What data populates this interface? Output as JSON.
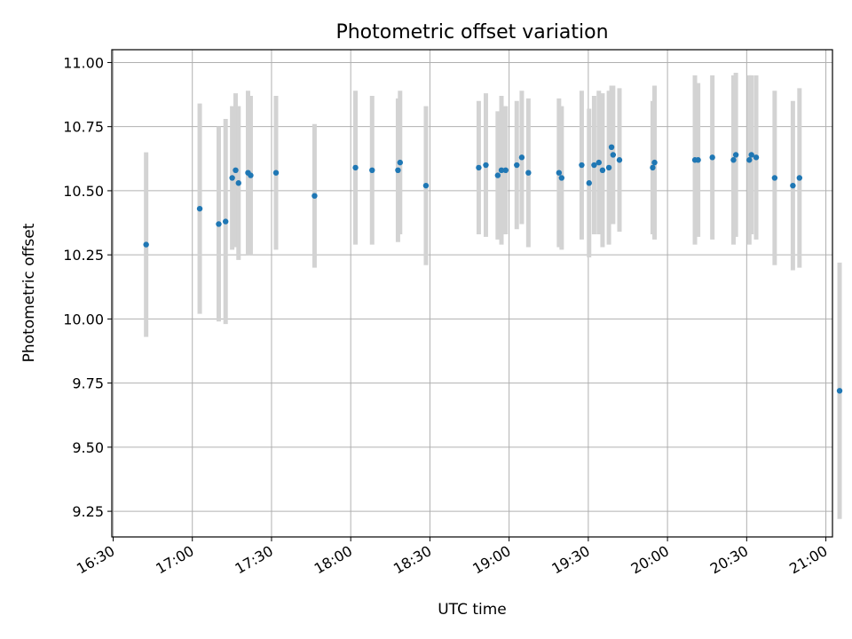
{
  "chart_data": {
    "type": "scatter",
    "title": "Photometric offset variation",
    "xlabel": "UTC time",
    "ylabel": "Photometric offset",
    "grid": true,
    "x_tick_labels": [
      "16:30",
      "17:00",
      "17:30",
      "18:00",
      "18:30",
      "19:00",
      "19:30",
      "20:00",
      "20:30",
      "21:00"
    ],
    "x_tick_minutes": [
      990,
      1020,
      1050,
      1080,
      1110,
      1140,
      1170,
      1200,
      1230,
      1260
    ],
    "xlim_minutes": [
      989.5,
      1262.5
    ],
    "y_tick_labels": [
      "9.25",
      "9.50",
      "9.75",
      "10.00",
      "10.25",
      "10.50",
      "10.75",
      "11.00"
    ],
    "y_tick_values": [
      9.25,
      9.5,
      9.75,
      10.0,
      10.25,
      10.5,
      10.75,
      11.0
    ],
    "ylim": [
      9.15,
      11.05
    ],
    "colors": {
      "point": "#1f77b4",
      "errorbar": "#d3d3d3",
      "grid": "#b0b0b0"
    },
    "series": [
      {
        "x_minutes": [
          1002.5,
          1022.8,
          1030.0,
          1032.6,
          1035.1,
          1036.4,
          1037.5,
          1041.1,
          1042.1,
          1051.7,
          1066.3,
          1081.8,
          1088.1,
          1097.9,
          1098.7,
          1108.5,
          1128.5,
          1131.2,
          1135.7,
          1137.1,
          1138.7,
          1142.9,
          1144.8,
          1147.3,
          1158.9,
          1159.9,
          1167.5,
          1170.3,
          1172.2,
          1174.0,
          1175.4,
          1177.8,
          1178.8,
          1179.4,
          1181.8,
          1194.4,
          1195.1,
          1210.4,
          1211.6,
          1217.0,
          1225.0,
          1225.9,
          1231.0,
          1231.8,
          1233.6,
          1240.6,
          1247.5,
          1250.0,
          1265.2
        ],
        "y": [
          10.29,
          10.43,
          10.37,
          10.38,
          10.55,
          10.58,
          10.53,
          10.57,
          10.56,
          10.57,
          10.48,
          10.59,
          10.58,
          10.58,
          10.61,
          10.52,
          10.59,
          10.6,
          10.56,
          10.58,
          10.58,
          10.6,
          10.63,
          10.57,
          10.57,
          10.55,
          10.6,
          10.53,
          10.6,
          10.61,
          10.58,
          10.59,
          10.67,
          10.64,
          10.62,
          10.59,
          10.61,
          10.62,
          10.62,
          10.63,
          10.62,
          10.64,
          10.62,
          10.64,
          10.63,
          10.55,
          10.52,
          10.55,
          9.72
        ],
        "y_err": [
          0.36,
          0.41,
          0.38,
          0.4,
          0.28,
          0.3,
          0.3,
          0.32,
          0.31,
          0.3,
          0.28,
          0.3,
          0.29,
          0.28,
          0.28,
          0.31,
          0.26,
          0.28,
          0.25,
          0.29,
          0.25,
          0.25,
          0.26,
          0.29,
          0.29,
          0.28,
          0.29,
          0.29,
          0.27,
          0.28,
          0.3,
          0.3,
          0.24,
          0.27,
          0.28,
          0.26,
          0.3,
          0.33,
          0.3,
          0.32,
          0.33,
          0.32,
          0.33,
          0.31,
          0.32,
          0.34,
          0.33,
          0.35,
          0.5
        ]
      }
    ]
  }
}
